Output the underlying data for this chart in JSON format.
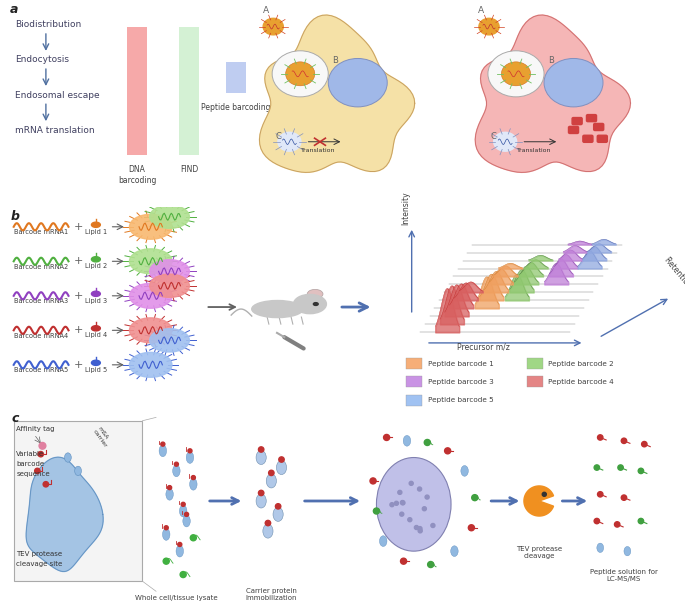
{
  "bg_color": "#ffffff",
  "panel_a_labels": [
    "Biodistribution",
    "Endocytosis",
    "Endosomal escape",
    "mRNA translation"
  ],
  "bar_dna_color": "#f5a0a0",
  "bar_find_color": "#d0f0d0",
  "bar_peptide_color": "#b8c8f0",
  "cell_yellow": "#f5dfa0",
  "cell_yellow_outline": "#c8a060",
  "cell_pink": "#f5b0b0",
  "cell_pink_outline": "#d07070",
  "nucleus_color": "#a0b8e8",
  "nucleus_outline": "#8090c0",
  "endosome_white": "#f8f8f8",
  "np_body_orange": "#e8a030",
  "np_spike_green": "#70c060",
  "np_spike_orange": "#e07020",
  "mrna_colors": [
    "#e07820",
    "#50b040",
    "#9040c0",
    "#c03030",
    "#4060d0"
  ],
  "np_fill_colors": [
    "#f8b870",
    "#b0e090",
    "#e090e8",
    "#f09090",
    "#a0c0f0"
  ],
  "legend_colors": [
    "#f5a060",
    "#90d070",
    "#c080e0",
    "#e07070",
    "#90b8f0"
  ],
  "legend_labels": [
    "Peptide barcode 1",
    "Peptide barcode 2",
    "Peptide barcode 3",
    "Peptide barcode 4",
    "Peptide barcode 5"
  ],
  "ms_colors": [
    "#e87070",
    "#f5a060",
    "#90c870",
    "#b078d0",
    "#90a8e0"
  ],
  "arrow_blue": "#5070b0",
  "text_dark": "#404040",
  "text_mid": "#606060"
}
